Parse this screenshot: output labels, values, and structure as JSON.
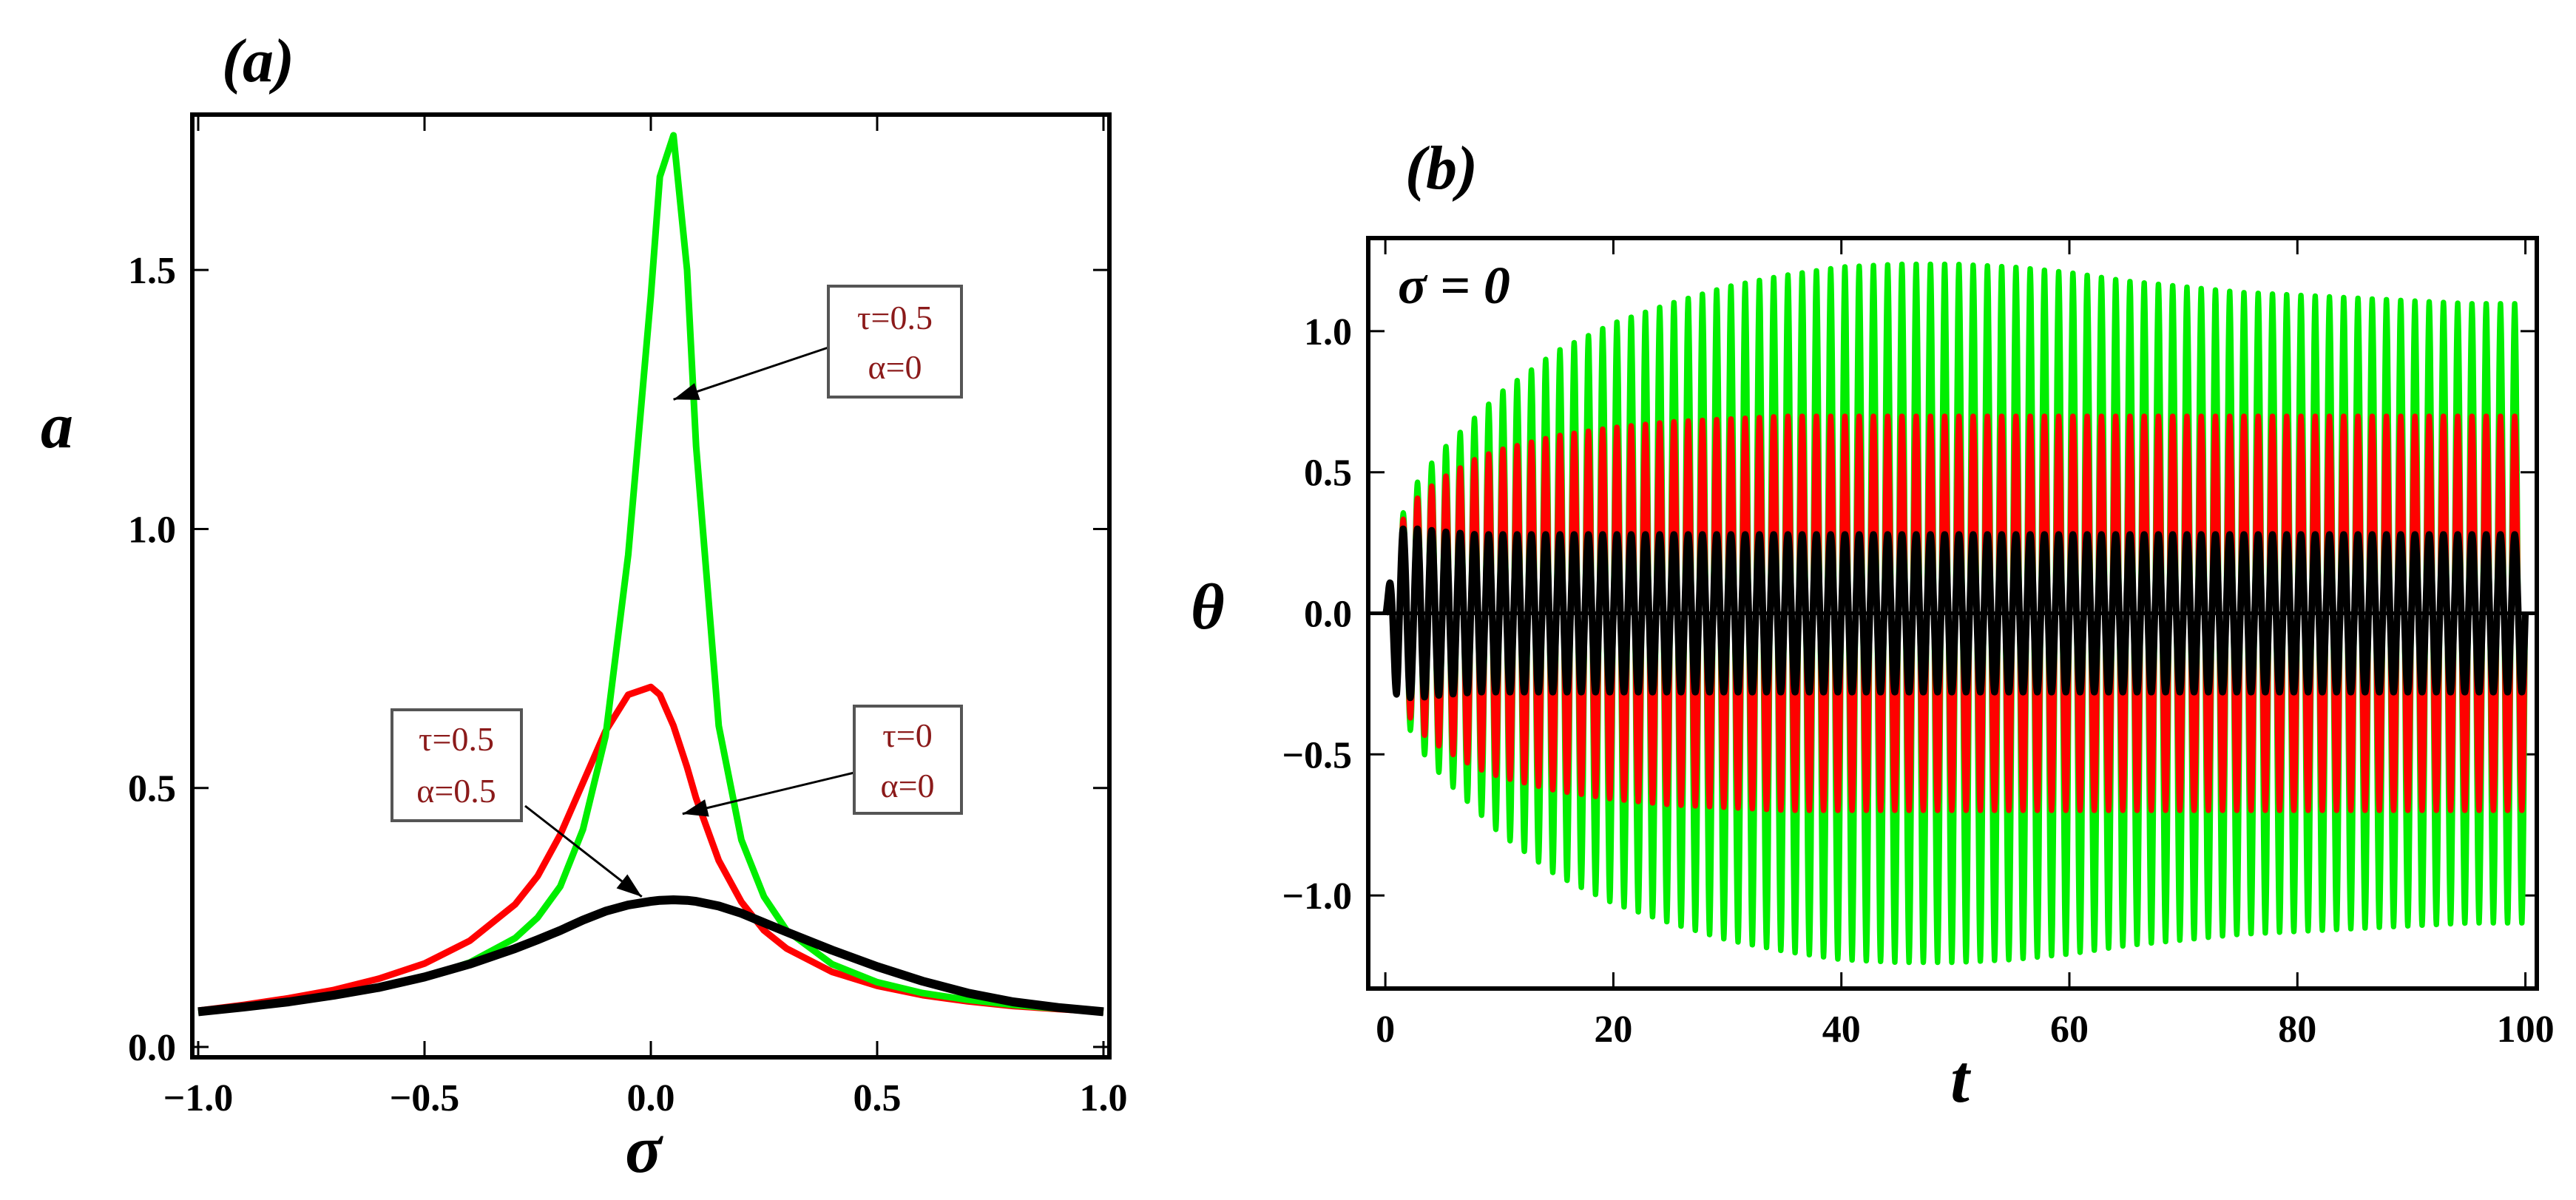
{
  "chart_data": [
    {
      "id": "a",
      "type": "line",
      "panel_label": "(a)",
      "xlabel": "σ",
      "ylabel": "a",
      "xlim": [
        -1.0,
        1.0
      ],
      "ylim": [
        -0.02,
        1.8
      ],
      "xticks": [
        -1.0,
        -0.5,
        0.0,
        0.5,
        1.0
      ],
      "xtick_labels": [
        "−1.0",
        "−0.5",
        "0.0",
        "0.5",
        "1.0"
      ],
      "yticks": [
        0.0,
        0.5,
        1.0,
        1.5
      ],
      "ytick_labels": [
        "0.0",
        "0.5",
        "1.0",
        "1.5"
      ],
      "x": [
        -1.0,
        -0.9,
        -0.8,
        -0.7,
        -0.6,
        -0.5,
        -0.4,
        -0.3,
        -0.25,
        -0.2,
        -0.15,
        -0.1,
        -0.05,
        0.0,
        0.02,
        0.05,
        0.08,
        0.1,
        0.15,
        0.2,
        0.25,
        0.3,
        0.4,
        0.5,
        0.6,
        0.7,
        0.8,
        0.9,
        1.0
      ],
      "series": [
        {
          "name": "τ=0, α=0",
          "color": "#ff0000",
          "values": [
            0.07,
            0.081,
            0.094,
            0.11,
            0.132,
            0.161,
            0.205,
            0.275,
            0.33,
            0.41,
            0.51,
            0.61,
            0.68,
            0.695,
            0.68,
            0.62,
            0.54,
            0.48,
            0.36,
            0.28,
            0.225,
            0.19,
            0.145,
            0.118,
            0.1,
            0.088,
            0.079,
            0.073,
            0.068
          ]
        },
        {
          "name": "τ=0.5, α=0",
          "color": "#00ee00",
          "values": [
            0.068,
            0.077,
            0.087,
            0.099,
            0.114,
            0.134,
            0.163,
            0.21,
            0.25,
            0.31,
            0.42,
            0.6,
            0.95,
            1.45,
            1.68,
            1.76,
            1.5,
            1.16,
            0.62,
            0.4,
            0.29,
            0.225,
            0.16,
            0.125,
            0.104,
            0.091,
            0.081,
            0.074,
            0.068
          ]
        },
        {
          "name": "τ=0.5, α=0.5",
          "color": "#000000",
          "values": [
            0.068,
            0.077,
            0.087,
            0.1,
            0.115,
            0.135,
            0.16,
            0.19,
            0.207,
            0.225,
            0.245,
            0.262,
            0.274,
            0.281,
            0.283,
            0.284,
            0.283,
            0.281,
            0.272,
            0.258,
            0.24,
            0.222,
            0.187,
            0.155,
            0.127,
            0.104,
            0.087,
            0.076,
            0.068
          ]
        }
      ],
      "annotations": [
        {
          "lines": [
            "τ=0.5",
            "α=0"
          ],
          "points_to": [
            0.05,
            1.25
          ]
        },
        {
          "lines": [
            "τ=0",
            "α=0"
          ],
          "points_to": [
            0.07,
            0.45
          ]
        },
        {
          "lines": [
            "τ=0.5",
            "α=0.5"
          ],
          "points_to": [
            -0.02,
            0.29
          ]
        }
      ]
    },
    {
      "id": "b",
      "type": "line",
      "panel_label": "(b)",
      "xlabel": "t",
      "ylabel": "θ",
      "xlim": [
        -1.5,
        101
      ],
      "ylim": [
        -1.33,
        1.33
      ],
      "xticks": [
        0,
        20,
        40,
        60,
        80,
        100
      ],
      "xtick_labels": [
        "0",
        "20",
        "40",
        "60",
        "80",
        "100"
      ],
      "yticks": [
        -1.0,
        -0.5,
        0.0,
        0.5,
        1.0
      ],
      "ytick_labels": [
        "−1.0",
        "−0.5",
        "0.0",
        "0.5",
        "1.0"
      ],
      "inset_text": "σ = 0",
      "oscillation_period": 1.25,
      "envelope_t": [
        0,
        1,
        2,
        3,
        5,
        8,
        10,
        15,
        20,
        25,
        30,
        35,
        40,
        45,
        50,
        55,
        60,
        65,
        70,
        75,
        80,
        85,
        90,
        95,
        100
      ],
      "series": [
        {
          "name": "green",
          "color": "#00ee00",
          "amplitude": [
            0.0,
            0.3,
            0.4,
            0.48,
            0.58,
            0.7,
            0.78,
            0.93,
            1.03,
            1.1,
            1.16,
            1.2,
            1.23,
            1.24,
            1.24,
            1.23,
            1.21,
            1.18,
            1.16,
            1.14,
            1.13,
            1.12,
            1.11,
            1.1,
            1.1
          ]
        },
        {
          "name": "red",
          "color": "#ff0000",
          "amplitude": [
            0.0,
            0.3,
            0.36,
            0.42,
            0.48,
            0.55,
            0.58,
            0.63,
            0.66,
            0.68,
            0.69,
            0.7,
            0.7,
            0.7,
            0.7,
            0.7,
            0.7,
            0.7,
            0.7,
            0.7,
            0.7,
            0.7,
            0.7,
            0.7,
            0.7
          ]
        },
        {
          "name": "black",
          "color": "#000000",
          "amplitude": [
            0.0,
            0.3,
            0.3,
            0.3,
            0.29,
            0.28,
            0.28,
            0.28,
            0.28,
            0.28,
            0.28,
            0.28,
            0.28,
            0.28,
            0.28,
            0.28,
            0.28,
            0.28,
            0.28,
            0.28,
            0.28,
            0.28,
            0.28,
            0.28,
            0.28
          ]
        }
      ]
    }
  ]
}
